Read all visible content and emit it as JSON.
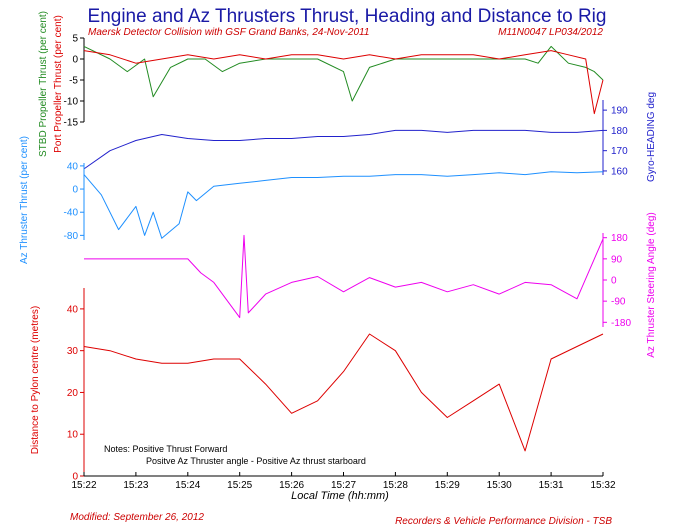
{
  "header": {
    "title": "Engine and Az Thrusters Thrust, Heading and Distance to Rig",
    "subtitle_left": "Maersk Detector Collision with GSF Grand Banks, 24-Nov-2011",
    "subtitle_right": "M11N0047 LP034/2012"
  },
  "notes": {
    "line1": "Notes: Positive Thrust Forward",
    "line2": "Positve Az Thruster angle - Positive Az thrust starboard"
  },
  "footer": {
    "left": "Modified: September 26, 2012",
    "right": "Recorders & Vehicle Performance Division - TSB"
  },
  "colors": {
    "title": "#1a1aa6",
    "stbd": "#228b22",
    "port": "#dd0000",
    "heading": "#2222cc",
    "az_thrust": "#1e90ff",
    "az_angle": "#ee00ee",
    "distance": "#dd0000"
  },
  "chart_data": {
    "type": "line",
    "xlabel": "Local Time (hh:mm)",
    "x_ticks": [
      "15:22",
      "15:23",
      "15:24",
      "15:25",
      "15:26",
      "15:27",
      "15:28",
      "15:29",
      "15:30",
      "15:31",
      "15:32"
    ],
    "xlim": [
      "15:22",
      "15:32"
    ],
    "panels": [
      {
        "id": "propeller",
        "ylabel_left_1": "STBD Propeller Thrust (per cent)",
        "ylabel_left_2": "Port Propeller Thrust (per cent)",
        "y_ticks": [
          "5",
          "0",
          "-5",
          "-10",
          "-15"
        ],
        "ylim": [
          -15,
          5
        ],
        "series": [
          {
            "id": "stbd",
            "color": "#228b22",
            "x": [
              "15:22:00",
              "15:22:30",
              "15:22:50",
              "15:23:10",
              "15:23:20",
              "15:23:40",
              "15:24:00",
              "15:24:20",
              "15:24:40",
              "15:25:00",
              "15:25:30",
              "15:26:00",
              "15:26:30",
              "15:27:00",
              "15:27:10",
              "15:27:30",
              "15:28:00",
              "15:28:30",
              "15:29:00",
              "15:29:30",
              "15:30:00",
              "15:30:30",
              "15:30:45",
              "15:31:00",
              "15:31:20",
              "15:31:40",
              "15:31:50",
              "15:32:00"
            ],
            "y": [
              3,
              0,
              -3,
              0,
              -9,
              -2,
              0,
              0,
              -3,
              -1,
              0,
              0,
              0,
              -3,
              -10,
              -2,
              0,
              0,
              0,
              0,
              0,
              0,
              -1,
              3,
              -1,
              -2,
              -3,
              -5
            ]
          },
          {
            "id": "port",
            "color": "#dd0000",
            "x": [
              "15:22:00",
              "15:22:30",
              "15:23:00",
              "15:23:30",
              "15:24:00",
              "15:24:30",
              "15:25:00",
              "15:25:30",
              "15:26:00",
              "15:26:30",
              "15:27:00",
              "15:27:30",
              "15:28:00",
              "15:28:30",
              "15:29:00",
              "15:29:30",
              "15:30:00",
              "15:30:30",
              "15:31:00",
              "15:31:20",
              "15:31:40",
              "15:31:50",
              "15:32:00"
            ],
            "y": [
              2,
              1,
              -1,
              0,
              1,
              0,
              1,
              0,
              1,
              1,
              0,
              1,
              0,
              1,
              1,
              1,
              0,
              1,
              2,
              1,
              0,
              -13,
              -5
            ]
          }
        ]
      },
      {
        "id": "heading",
        "ylabel_right": "Gyro-HEADING deg",
        "y_ticks": [
          "190",
          "180",
          "170",
          "160"
        ],
        "ylim": [
          158,
          195
        ],
        "series": [
          {
            "id": "heading",
            "color": "#2222cc",
            "x": [
              "15:22:00",
              "15:22:30",
              "15:23:00",
              "15:23:30",
              "15:24:00",
              "15:24:30",
              "15:25:00",
              "15:25:30",
              "15:26:00",
              "15:26:30",
              "15:27:00",
              "15:27:30",
              "15:28:00",
              "15:28:30",
              "15:29:00",
              "15:29:30",
              "15:30:00",
              "15:30:30",
              "15:31:00",
              "15:31:30",
              "15:32:00"
            ],
            "y": [
              161,
              170,
              175,
              178,
              176,
              175,
              175,
              176,
              176,
              177,
              177,
              178,
              180,
              180,
              179,
              180,
              180,
              180,
              179,
              179,
              180
            ]
          }
        ]
      },
      {
        "id": "az_thrust",
        "ylabel_left": "Az Thruster Thrust (per cent)",
        "y_ticks": [
          "40",
          "0",
          "-40",
          "-80"
        ],
        "ylim": [
          -88,
          45
        ],
        "series": [
          {
            "id": "az_thrust",
            "color": "#1e90ff",
            "x": [
              "15:22:00",
              "15:22:20",
              "15:22:40",
              "15:23:00",
              "15:23:10",
              "15:23:20",
              "15:23:30",
              "15:23:50",
              "15:24:00",
              "15:24:10",
              "15:24:30",
              "15:25:00",
              "15:25:30",
              "15:26:00",
              "15:26:30",
              "15:27:00",
              "15:27:30",
              "15:28:00",
              "15:28:30",
              "15:29:00",
              "15:29:30",
              "15:30:00",
              "15:30:30",
              "15:31:00",
              "15:31:30",
              "15:32:00"
            ],
            "y": [
              25,
              -10,
              -70,
              -30,
              -80,
              -40,
              -85,
              -60,
              -5,
              -20,
              5,
              10,
              15,
              20,
              20,
              22,
              22,
              25,
              25,
              22,
              25,
              28,
              25,
              30,
              28,
              30
            ]
          }
        ]
      },
      {
        "id": "az_angle",
        "ylabel_right": "Az Thruster Steering Angle (deg)",
        "y_ticks": [
          "180",
          "90",
          "0",
          "-90",
          "-180"
        ],
        "ylim": [
          -200,
          200
        ],
        "series": [
          {
            "id": "az_angle",
            "color": "#ee00ee",
            "x": [
              "15:22:00",
              "15:23:00",
              "15:24:00",
              "15:24:15",
              "15:24:30",
              "15:25:00",
              "15:25:05",
              "15:25:10",
              "15:25:30",
              "15:26:00",
              "15:26:30",
              "15:27:00",
              "15:27:30",
              "15:28:00",
              "15:28:30",
              "15:29:00",
              "15:29:30",
              "15:30:00",
              "15:30:30",
              "15:31:00",
              "15:31:30",
              "15:32:00"
            ],
            "y": [
              90,
              90,
              90,
              30,
              -10,
              -160,
              190,
              -140,
              -60,
              -10,
              15,
              -50,
              10,
              -30,
              -10,
              -50,
              -20,
              -60,
              -10,
              -20,
              -80,
              175
            ]
          }
        ]
      },
      {
        "id": "distance",
        "ylabel_left": "Distance to Pylon centre (metres)",
        "y_ticks": [
          "40",
          "30",
          "20",
          "10",
          "0"
        ],
        "ylim": [
          0,
          45
        ],
        "series": [
          {
            "id": "distance",
            "color": "#dd0000",
            "x": [
              "15:22:00",
              "15:22:30",
              "15:23:00",
              "15:23:30",
              "15:24:00",
              "15:24:30",
              "15:25:00",
              "15:25:30",
              "15:26:00",
              "15:26:30",
              "15:27:00",
              "15:27:30",
              "15:28:00",
              "15:28:30",
              "15:29:00",
              "15:29:30",
              "15:30:00",
              "15:30:30",
              "15:31:00",
              "15:31:30",
              "15:32:00"
            ],
            "y": [
              31,
              30,
              28,
              27,
              27,
              28,
              28,
              22,
              15,
              18,
              25,
              34,
              30,
              20,
              14,
              18,
              22,
              6,
              28,
              31,
              34
            ]
          }
        ]
      }
    ]
  }
}
